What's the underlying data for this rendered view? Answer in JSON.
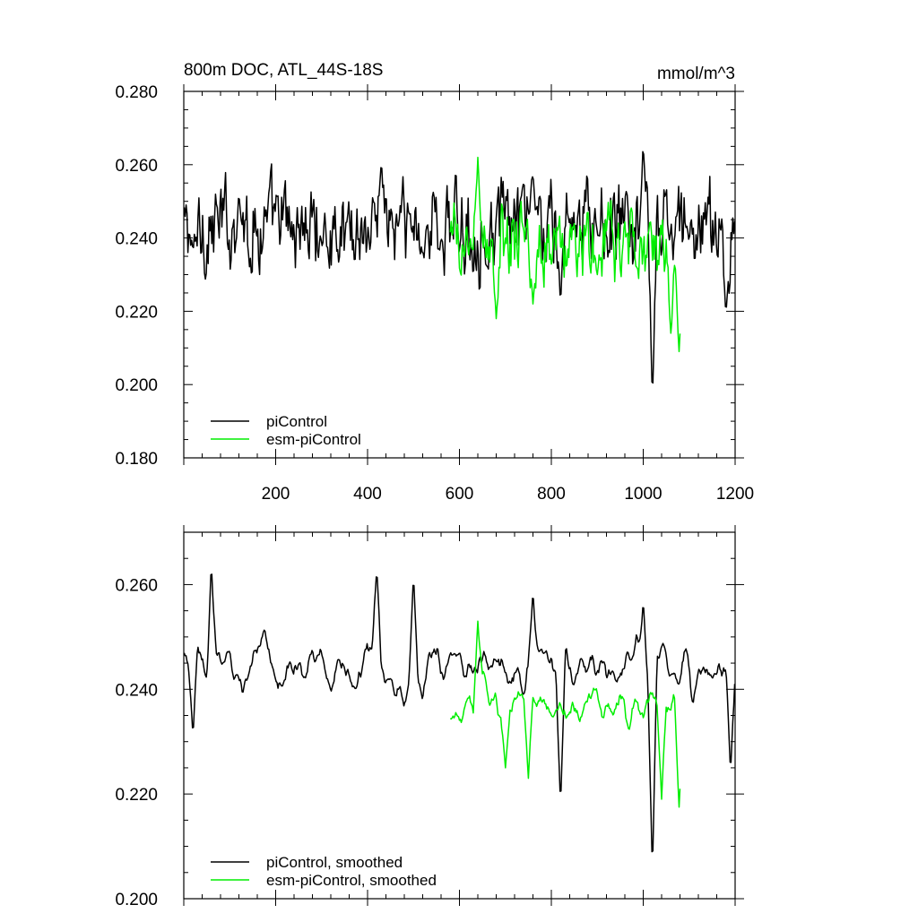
{
  "chart_data": [
    {
      "type": "line",
      "title": "800m DOC, ATL_44S-18S",
      "units": "mmol/m^3",
      "xlim": [
        0,
        1200
      ],
      "ylim": [
        0.18,
        0.28
      ],
      "xticks": [
        200,
        400,
        600,
        800,
        1000,
        1200
      ],
      "yticks": [
        "0.180",
        "0.200",
        "0.220",
        "0.240",
        "0.260",
        "0.280"
      ],
      "legend_position": "bottom-left",
      "series": [
        {
          "name": "piControl",
          "color": "#000000",
          "x_start": 1,
          "x_end": 1200,
          "mean": 0.243,
          "amplitude": 0.011,
          "points": [
            [
              20,
              0.236
            ],
            [
              120,
              0.252
            ],
            [
              300,
              0.238
            ],
            [
              430,
              0.262
            ],
            [
              520,
              0.236
            ],
            [
              660,
              0.232
            ],
            [
              760,
              0.258
            ],
            [
              820,
              0.222
            ],
            [
              1000,
              0.265
            ],
            [
              1020,
              0.196
            ],
            [
              1100,
              0.24
            ],
            [
              1180,
              0.218
            ]
          ]
        },
        {
          "name": "esm-piControl",
          "color": "#00ee00",
          "x_start": 580,
          "x_end": 1080,
          "mean": 0.238,
          "amplitude": 0.009,
          "points": [
            [
              640,
              0.262
            ],
            [
              680,
              0.218
            ],
            [
              760,
              0.222
            ],
            [
              900,
              0.23
            ],
            [
              1060,
              0.214
            ],
            [
              1078,
              0.209
            ]
          ]
        }
      ]
    },
    {
      "type": "line",
      "title": "",
      "units": "",
      "xlim": [
        0,
        1200
      ],
      "ylim": [
        0.2,
        0.27
      ],
      "xticks": [],
      "yticks": [
        "0.200",
        "0.220",
        "0.240",
        "0.260"
      ],
      "legend_position": "bottom-left",
      "series": [
        {
          "name": "piControl, smoothed",
          "color": "#000000",
          "x_start": 1,
          "x_end": 1200,
          "mean": 0.244,
          "amplitude": 0.007,
          "points": [
            [
              20,
              0.231
            ],
            [
              60,
              0.264
            ],
            [
              420,
              0.263
            ],
            [
              500,
              0.262
            ],
            [
              600,
              0.247
            ],
            [
              760,
              0.259
            ],
            [
              820,
              0.218
            ],
            [
              1000,
              0.257
            ],
            [
              1020,
              0.205
            ],
            [
              1190,
              0.224
            ]
          ]
        },
        {
          "name": "esm-piControl, smoothed",
          "color": "#00ee00",
          "x_start": 580,
          "x_end": 1080,
          "mean": 0.237,
          "amplitude": 0.006,
          "points": [
            [
              640,
              0.253
            ],
            [
              700,
              0.225
            ],
            [
              750,
              0.223
            ],
            [
              1040,
              0.219
            ],
            [
              1078,
              0.2175
            ]
          ]
        }
      ]
    }
  ]
}
